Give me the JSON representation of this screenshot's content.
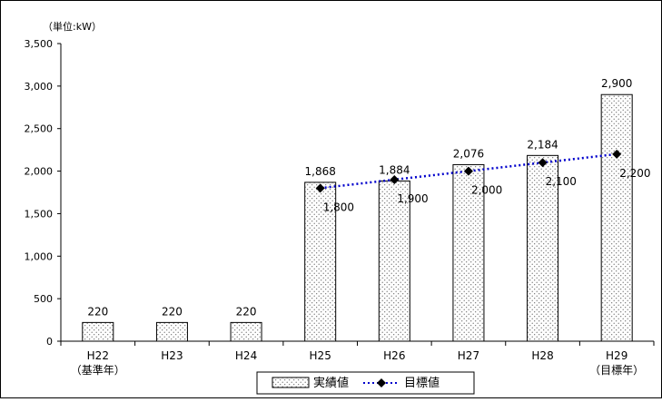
{
  "chart_data": {
    "type": "bar",
    "unit_label": "（単位:kW）",
    "categories": [
      "H22",
      "H23",
      "H24",
      "H25",
      "H26",
      "H27",
      "H28",
      "H29"
    ],
    "category_sublabels": [
      "（基準年）",
      "",
      "",
      "",
      "",
      "",
      "",
      "（目標年）"
    ],
    "series": [
      {
        "name": "実績値",
        "kind": "bar",
        "values": [
          220,
          220,
          220,
          1868,
          1884,
          2076,
          2184,
          2900
        ],
        "labels": [
          "220",
          "220",
          "220",
          "1,868",
          "1,884",
          "2,076",
          "2,184",
          "2,900"
        ]
      },
      {
        "name": "目標値",
        "kind": "line",
        "values": [
          null,
          null,
          null,
          1800,
          1900,
          2000,
          2100,
          2200
        ],
        "labels": [
          "",
          "",
          "",
          "1,800",
          "1,900",
          "2,000",
          "2,100",
          "2,200"
        ]
      }
    ],
    "ylim": [
      0,
      3500
    ],
    "yticks": [
      0,
      500,
      1000,
      1500,
      2000,
      2500,
      3000,
      3500
    ],
    "ytick_labels": [
      "0",
      "500",
      "1,000",
      "1,500",
      "2,000",
      "2,500",
      "3,000",
      "3,500"
    ],
    "grid": false,
    "legend_position": "bottom",
    "colors": {
      "frame_border": "#000000",
      "bar_fill": "#ffffff",
      "bar_dots": "#555555",
      "line": "#0000cc",
      "marker": "#000000"
    }
  }
}
